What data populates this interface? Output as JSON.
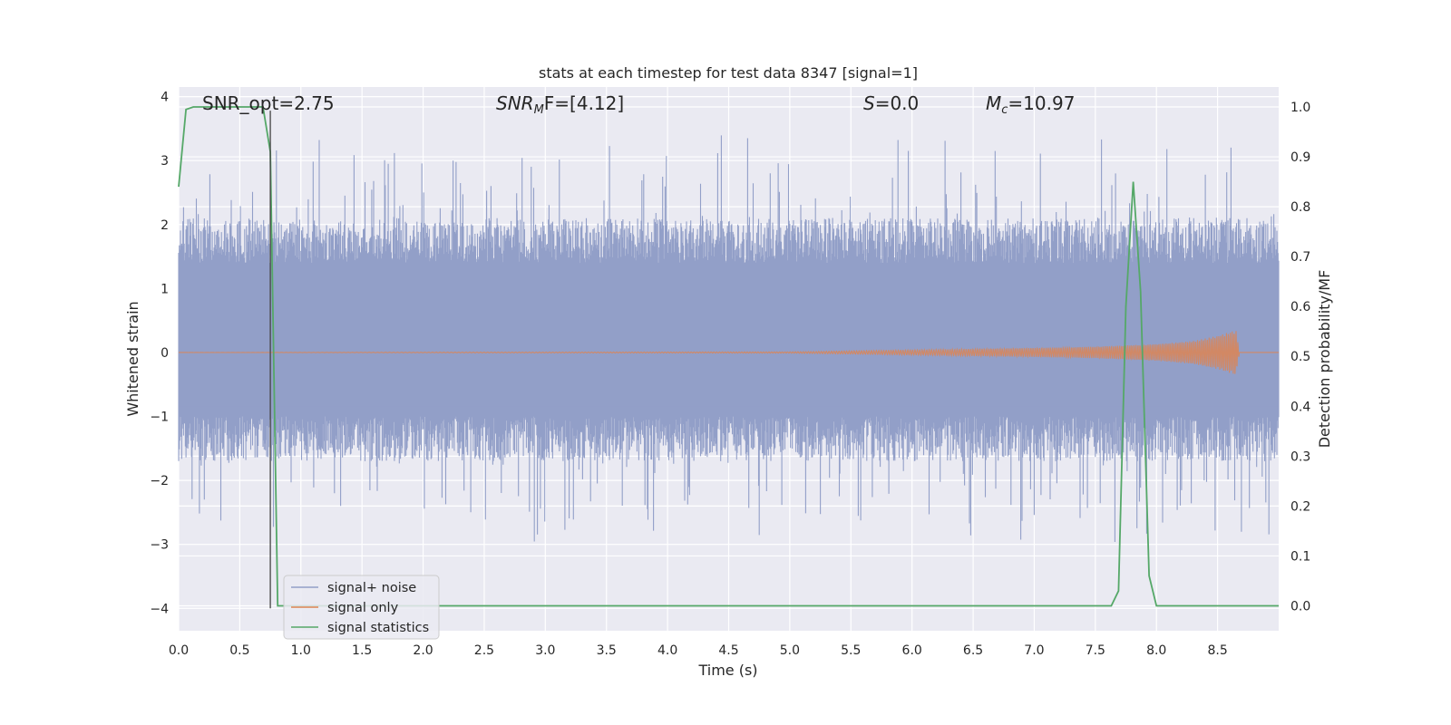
{
  "chart_data": {
    "type": "line",
    "title": "stats at each timestep for test data 8347 [signal=1]",
    "xlabel": "Time (s)",
    "ylabel_left": "Whitened strain",
    "ylabel_right": "Detection probability/MF",
    "xlim": [
      0.0,
      9.0
    ],
    "ylim_left": [
      -4.35,
      4.15
    ],
    "ylim_right": [
      -0.05,
      1.04
    ],
    "xticks": [
      "0.0",
      "0.5",
      "1.0",
      "1.5",
      "2.0",
      "2.5",
      "3.0",
      "3.5",
      "4.0",
      "4.5",
      "5.0",
      "5.5",
      "6.0",
      "6.5",
      "7.0",
      "7.5",
      "8.0",
      "8.5"
    ],
    "yticks_left": [
      "4",
      "3",
      "2",
      "1",
      "0",
      "−1",
      "−2",
      "−3",
      "−4"
    ],
    "yticks_right": [
      "1.0",
      "0.9",
      "0.8",
      "0.7",
      "0.6",
      "0.5",
      "0.4",
      "0.3",
      "0.2",
      "0.1",
      "0.0"
    ],
    "grid": true,
    "legend_position": "lower-left",
    "annotations": {
      "snr_opt": "SNR_opt=2.75",
      "snr_mf_base": "SNR",
      "snr_mf_sub": "M",
      "snr_mf_rest": "F=[4.12]",
      "s_base": "S",
      "s_rest": "=0.0",
      "mc_base": "M",
      "mc_sub": "c",
      "mc_rest": "=10.97"
    },
    "marker_time": 0.75,
    "series": [
      {
        "name": "signal+ noise",
        "axis": "left",
        "color": "#929fc8",
        "note_visual": "dense noise roughly between -2 and 2.5"
      },
      {
        "name": "signal only",
        "axis": "left",
        "color": "#dd8452",
        "envelope": {
          "x": [
            0.0,
            5.0,
            6.0,
            7.0,
            7.5,
            8.0,
            8.3,
            8.5,
            8.65,
            8.68
          ],
          "y": [
            0.0,
            0.01,
            0.04,
            0.07,
            0.09,
            0.13,
            0.18,
            0.26,
            0.35,
            0.0
          ]
        }
      },
      {
        "name": "signal statistics",
        "axis": "right",
        "color": "#55a868",
        "x": [
          0.0,
          0.06,
          0.12,
          0.2,
          0.3,
          0.4,
          0.5,
          0.6,
          0.69,
          0.75,
          0.81,
          0.9,
          1.2,
          2.0,
          3.0,
          4.0,
          5.0,
          6.0,
          7.0,
          7.63,
          7.69,
          7.75,
          7.81,
          7.87,
          7.94,
          8.0,
          8.1,
          9.0
        ],
        "y": [
          0.84,
          0.995,
          1.0,
          1.0,
          1.0,
          1.0,
          1.0,
          1.0,
          1.0,
          0.91,
          0.0,
          0.0,
          0.0,
          0.0,
          0.0,
          0.0,
          0.0,
          0.0,
          0.0,
          0.0,
          0.03,
          0.6,
          0.85,
          0.63,
          0.06,
          0.0,
          0.0,
          0.0
        ]
      }
    ]
  }
}
